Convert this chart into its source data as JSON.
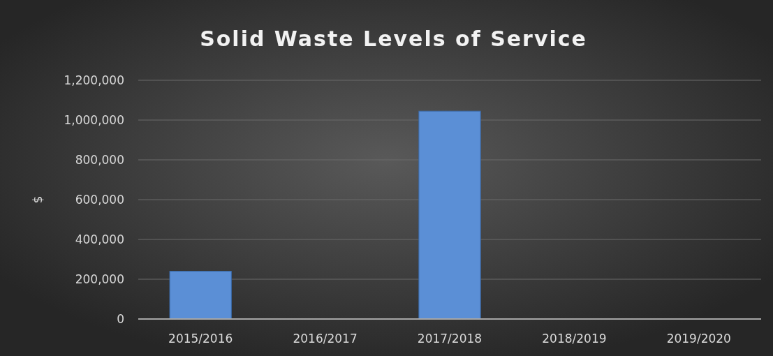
{
  "chart_data": {
    "type": "bar",
    "title": "Solid Waste Levels of Service",
    "ylabel": "$",
    "categories": [
      "2015/2016",
      "2016/2017",
      "2017/2018",
      "2018/2019",
      "2019/2020"
    ],
    "values": [
      240000,
      0,
      1045000,
      0,
      0
    ],
    "color": "#5b8fd6",
    "ylim": [
      0,
      1200000
    ],
    "yticks": [
      {
        "value": 0,
        "label": "0"
      },
      {
        "value": 200000,
        "label": "200,000"
      },
      {
        "value": 400000,
        "label": "400,000"
      },
      {
        "value": 600000,
        "label": "600,000"
      },
      {
        "value": 800000,
        "label": "800,000"
      },
      {
        "value": 1000000,
        "label": "1,000,000"
      },
      {
        "value": 1200000,
        "label": "1,200,000"
      }
    ],
    "grid": "y"
  }
}
